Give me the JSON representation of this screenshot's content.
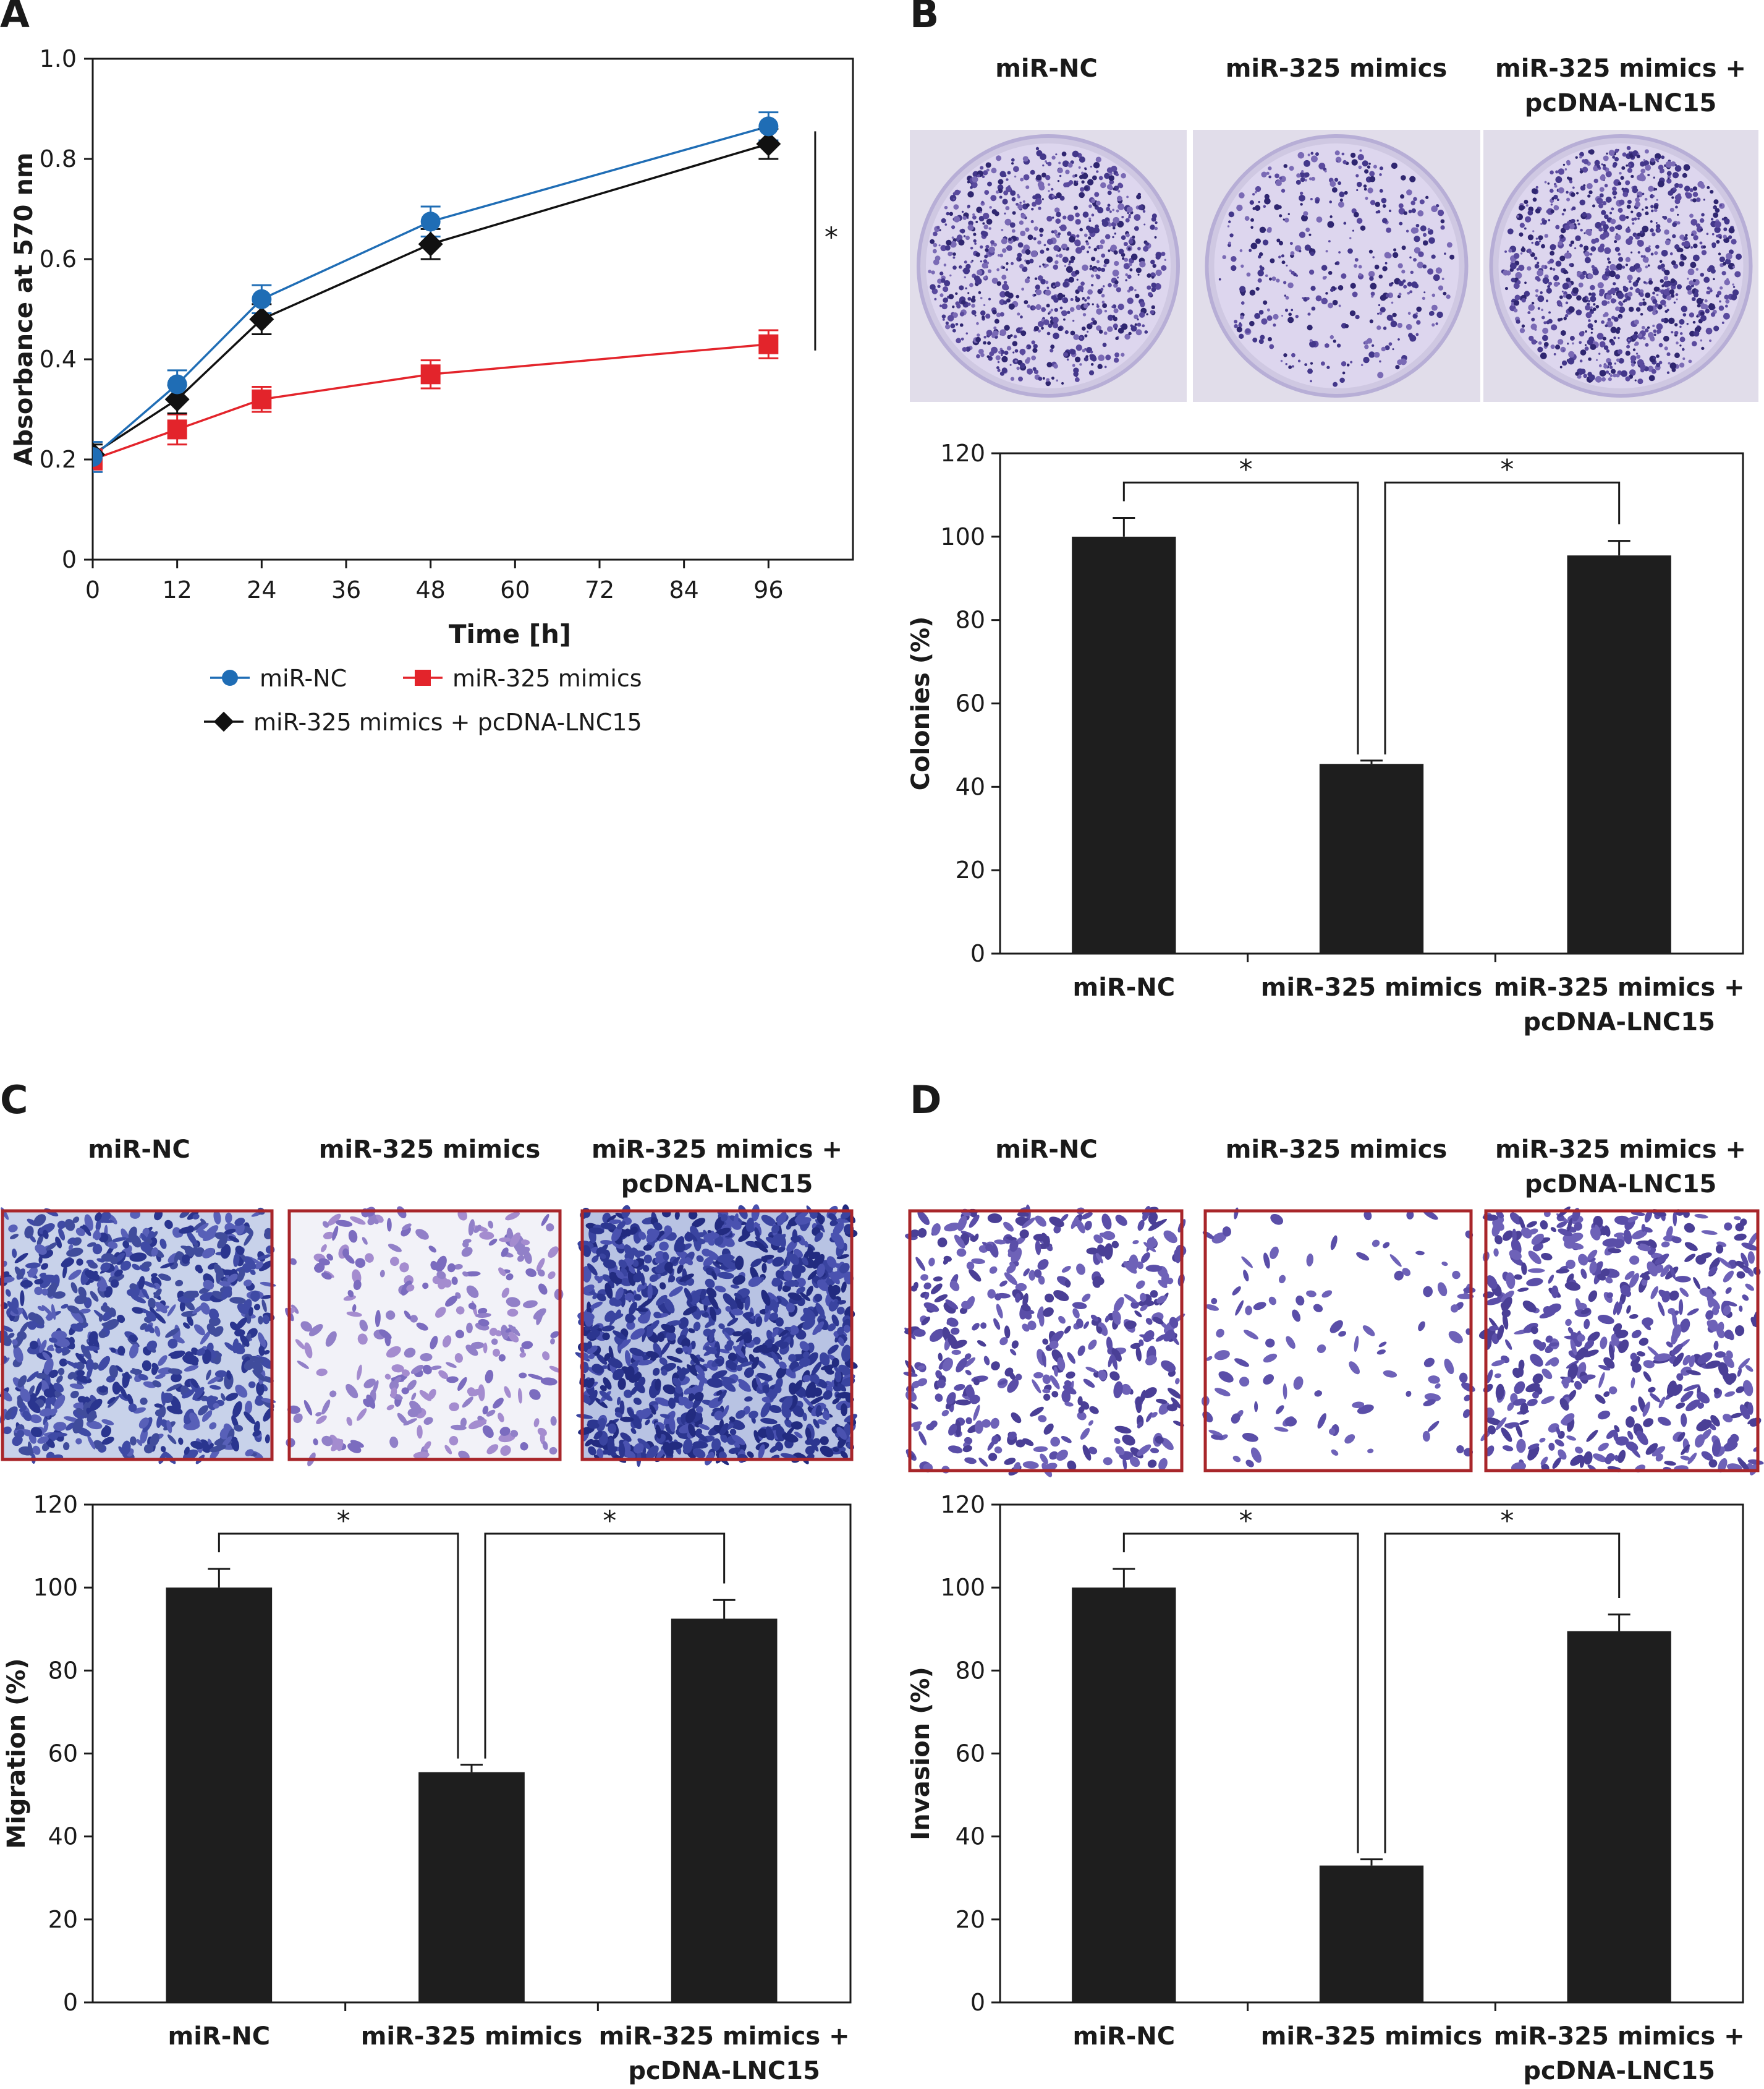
{
  "panels": [
    {
      "letter": "A"
    },
    {
      "letter": "B",
      "headers": [
        "miR-NC",
        "miR-325 mimics",
        "miR-325 mimics +|pcDNA-LNC15"
      ]
    },
    {
      "letter": "C",
      "headers": [
        "miR-NC",
        "miR-325 mimics",
        "miR-325 mimics +|pcDNA-LNC15"
      ]
    },
    {
      "letter": "D",
      "headers": [
        "miR-NC",
        "miR-325 mimics",
        "miR-325 mimics +|pcDNA-LNC15"
      ]
    }
  ],
  "chart_data": [
    {
      "panel": "A",
      "type": "line",
      "xlabel": "Time [h]",
      "ylabel": "Absorbance at 570 nm",
      "xlim": [
        0,
        108
      ],
      "xticks": [
        0,
        12,
        24,
        36,
        48,
        60,
        72,
        84,
        96
      ],
      "ylim": [
        0,
        1.0
      ],
      "yticks": [
        0,
        0.2,
        0.4,
        0.6,
        0.8,
        1.0
      ],
      "ytick_labels": [
        "0",
        "0.2",
        "0.4",
        "0.6",
        "0.8",
        "1.0"
      ],
      "legend": "bottom",
      "series": [
        {
          "name": "miR-NC",
          "color": "#1f6db5",
          "marker": "circle",
          "x": [
            0,
            12,
            24,
            48,
            96
          ],
          "y": [
            0.205,
            0.35,
            0.52,
            0.675,
            0.865
          ],
          "err": [
            0.03,
            0.028,
            0.028,
            0.03,
            0.028
          ]
        },
        {
          "name": "miR-325 mimics",
          "color": "#e3242b",
          "marker": "square",
          "x": [
            0,
            12,
            24,
            48,
            96
          ],
          "y": [
            0.2,
            0.26,
            0.32,
            0.37,
            0.43
          ],
          "err": [
            0.02,
            0.03,
            0.025,
            0.028,
            0.028
          ]
        },
        {
          "name": "miR-325 mimics + pcDNA-LNC15",
          "color": "#111111",
          "marker": "diamond",
          "x": [
            0,
            12,
            24,
            48,
            96
          ],
          "y": [
            0.21,
            0.32,
            0.48,
            0.63,
            0.83
          ],
          "err": [
            0.02,
            0.028,
            0.03,
            0.03,
            0.03
          ]
        }
      ],
      "annotations": [
        {
          "text": "*",
          "between": [
            0.43,
            0.865
          ],
          "at_x": 100
        }
      ]
    },
    {
      "panel": "B",
      "type": "bar",
      "ylabel": "Colonies (%)",
      "ylim": [
        0,
        120
      ],
      "yticks": [
        0,
        20,
        40,
        60,
        80,
        100,
        120
      ],
      "categories": [
        "miR-NC",
        "miR-325 mimics",
        "miR-325 mimics +|pcDNA-LNC15"
      ],
      "values": [
        100,
        45.5,
        95.5
      ],
      "errors": [
        4.5,
        0.8,
        3.5
      ],
      "significance": [
        {
          "from": 0,
          "to": 1,
          "label": "*"
        },
        {
          "from": 1,
          "to": 2,
          "label": "*"
        }
      ]
    },
    {
      "panel": "C",
      "type": "bar",
      "ylabel": "Migration (%)",
      "ylim": [
        0,
        120
      ],
      "yticks": [
        0,
        20,
        40,
        60,
        80,
        100,
        120
      ],
      "categories": [
        "miR-NC",
        "miR-325 mimics",
        "miR-325 mimics +|pcDNA-LNC15"
      ],
      "values": [
        100,
        55.5,
        92.5
      ],
      "errors": [
        4.5,
        1.8,
        4.5
      ],
      "significance": [
        {
          "from": 0,
          "to": 1,
          "label": "*"
        },
        {
          "from": 1,
          "to": 2,
          "label": "*"
        }
      ]
    },
    {
      "panel": "D",
      "type": "bar",
      "ylabel": "Invasion (%)",
      "ylim": [
        0,
        120
      ],
      "yticks": [
        0,
        20,
        40,
        60,
        80,
        100,
        120
      ],
      "categories": [
        "miR-NC",
        "miR-325 mimics",
        "miR-325 mimics +|pcDNA-LNC15"
      ],
      "values": [
        100,
        33,
        89.5
      ],
      "errors": [
        4.5,
        1.5,
        4
      ],
      "significance": [
        {
          "from": 0,
          "to": 1,
          "label": "*"
        },
        {
          "from": 1,
          "to": 2,
          "label": "*"
        }
      ]
    }
  ]
}
